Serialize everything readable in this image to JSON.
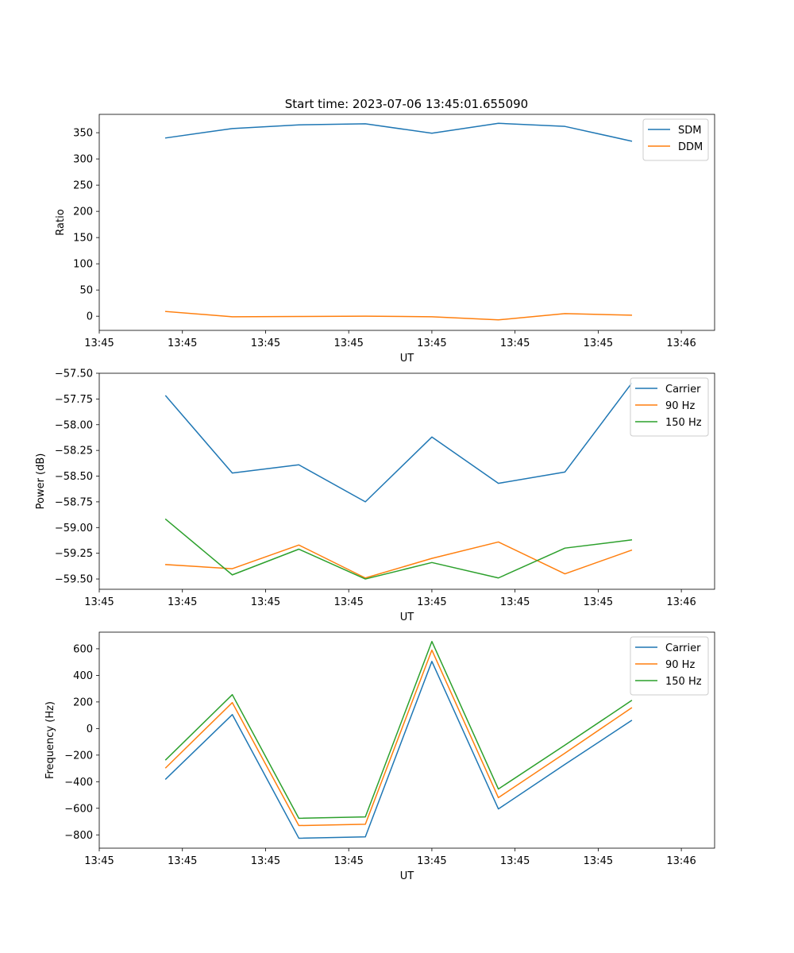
{
  "figure": {
    "title": "Start time: 2023-07-06 13:45:01.655090"
  },
  "chart_data": [
    {
      "type": "line",
      "title": "Start time: 2023-07-06 13:45:01.655090",
      "xlabel": "UT",
      "ylabel": "Ratio",
      "x_tick_labels": [
        "13:45",
        "13:45",
        "13:45",
        "13:45",
        "13:45",
        "13:45",
        "13:45",
        "13:46"
      ],
      "x": [
        1,
        2,
        3,
        4,
        5,
        6,
        7,
        8
      ],
      "xlim": [
        0,
        9.25
      ],
      "ylim": [
        -27,
        385
      ],
      "yticks": [
        0,
        50,
        100,
        150,
        200,
        250,
        300,
        350
      ],
      "legend_position": "top-right",
      "series": [
        {
          "name": "SDM",
          "color": "#1f77b4",
          "values": [
            340,
            358,
            365,
            367,
            349,
            368,
            362,
            334
          ]
        },
        {
          "name": "DDM",
          "color": "#ff7f0e",
          "values": [
            9,
            -1,
            -0.5,
            0,
            -1,
            -7,
            5,
            2
          ]
        }
      ]
    },
    {
      "type": "line",
      "xlabel": "UT",
      "ylabel": "Power (dB)",
      "x_tick_labels": [
        "13:45",
        "13:45",
        "13:45",
        "13:45",
        "13:45",
        "13:45",
        "13:45",
        "13:46"
      ],
      "x": [
        1,
        2,
        3,
        4,
        5,
        6,
        7,
        8
      ],
      "xlim": [
        0,
        9.25
      ],
      "ylim": [
        -59.6,
        -57.5
      ],
      "yticks": [
        -57.5,
        -57.75,
        -58.0,
        -58.25,
        -58.5,
        -58.75,
        -59.0,
        -59.25,
        -59.5
      ],
      "ytick_labels": [
        "−57.50",
        "−57.75",
        "−58.00",
        "−58.25",
        "−58.50",
        "−58.75",
        "−59.00",
        "−59.25",
        "−59.50"
      ],
      "legend_position": "top-right",
      "series": [
        {
          "name": "Carrier",
          "color": "#1f77b4",
          "values": [
            -57.72,
            -58.47,
            -58.39,
            -58.75,
            -58.12,
            -58.57,
            -58.46,
            -57.6
          ]
        },
        {
          "name": "90 Hz",
          "color": "#ff7f0e",
          "values": [
            -59.36,
            -59.4,
            -59.17,
            -59.49,
            -59.3,
            -59.14,
            -59.45,
            -59.22
          ]
        },
        {
          "name": "150 Hz",
          "color": "#2ca02c",
          "values": [
            -58.92,
            -59.46,
            -59.21,
            -59.5,
            -59.34,
            -59.49,
            -59.2,
            -59.12
          ]
        }
      ]
    },
    {
      "type": "line",
      "xlabel": "UT",
      "ylabel": "Frequency (Hz)",
      "x_tick_labels": [
        "13:45",
        "13:45",
        "13:45",
        "13:45",
        "13:45",
        "13:45",
        "13:45",
        "13:46"
      ],
      "x": [
        1,
        2,
        3,
        4,
        5,
        6,
        7,
        8
      ],
      "xlim": [
        0,
        9.25
      ],
      "ylim": [
        -900,
        725
      ],
      "yticks": [
        600,
        400,
        200,
        0,
        -200,
        -400,
        -600,
        -800
      ],
      "ytick_labels": [
        "600",
        "400",
        "200",
        "0",
        "−200",
        "−400",
        "−600",
        "−800"
      ],
      "legend_position": "top-right",
      "series": [
        {
          "name": "Carrier",
          "color": "#1f77b4",
          "values": [
            -380,
            105,
            -825,
            -815,
            505,
            -605,
            -270,
            60
          ]
        },
        {
          "name": "90 Hz",
          "color": "#ff7f0e",
          "values": [
            -295,
            195,
            -730,
            -720,
            590,
            -520,
            -185,
            155
          ]
        },
        {
          "name": "150 Hz",
          "color": "#2ca02c",
          "values": [
            -235,
            255,
            -675,
            -665,
            655,
            -455,
            -125,
            210
          ]
        }
      ]
    }
  ]
}
